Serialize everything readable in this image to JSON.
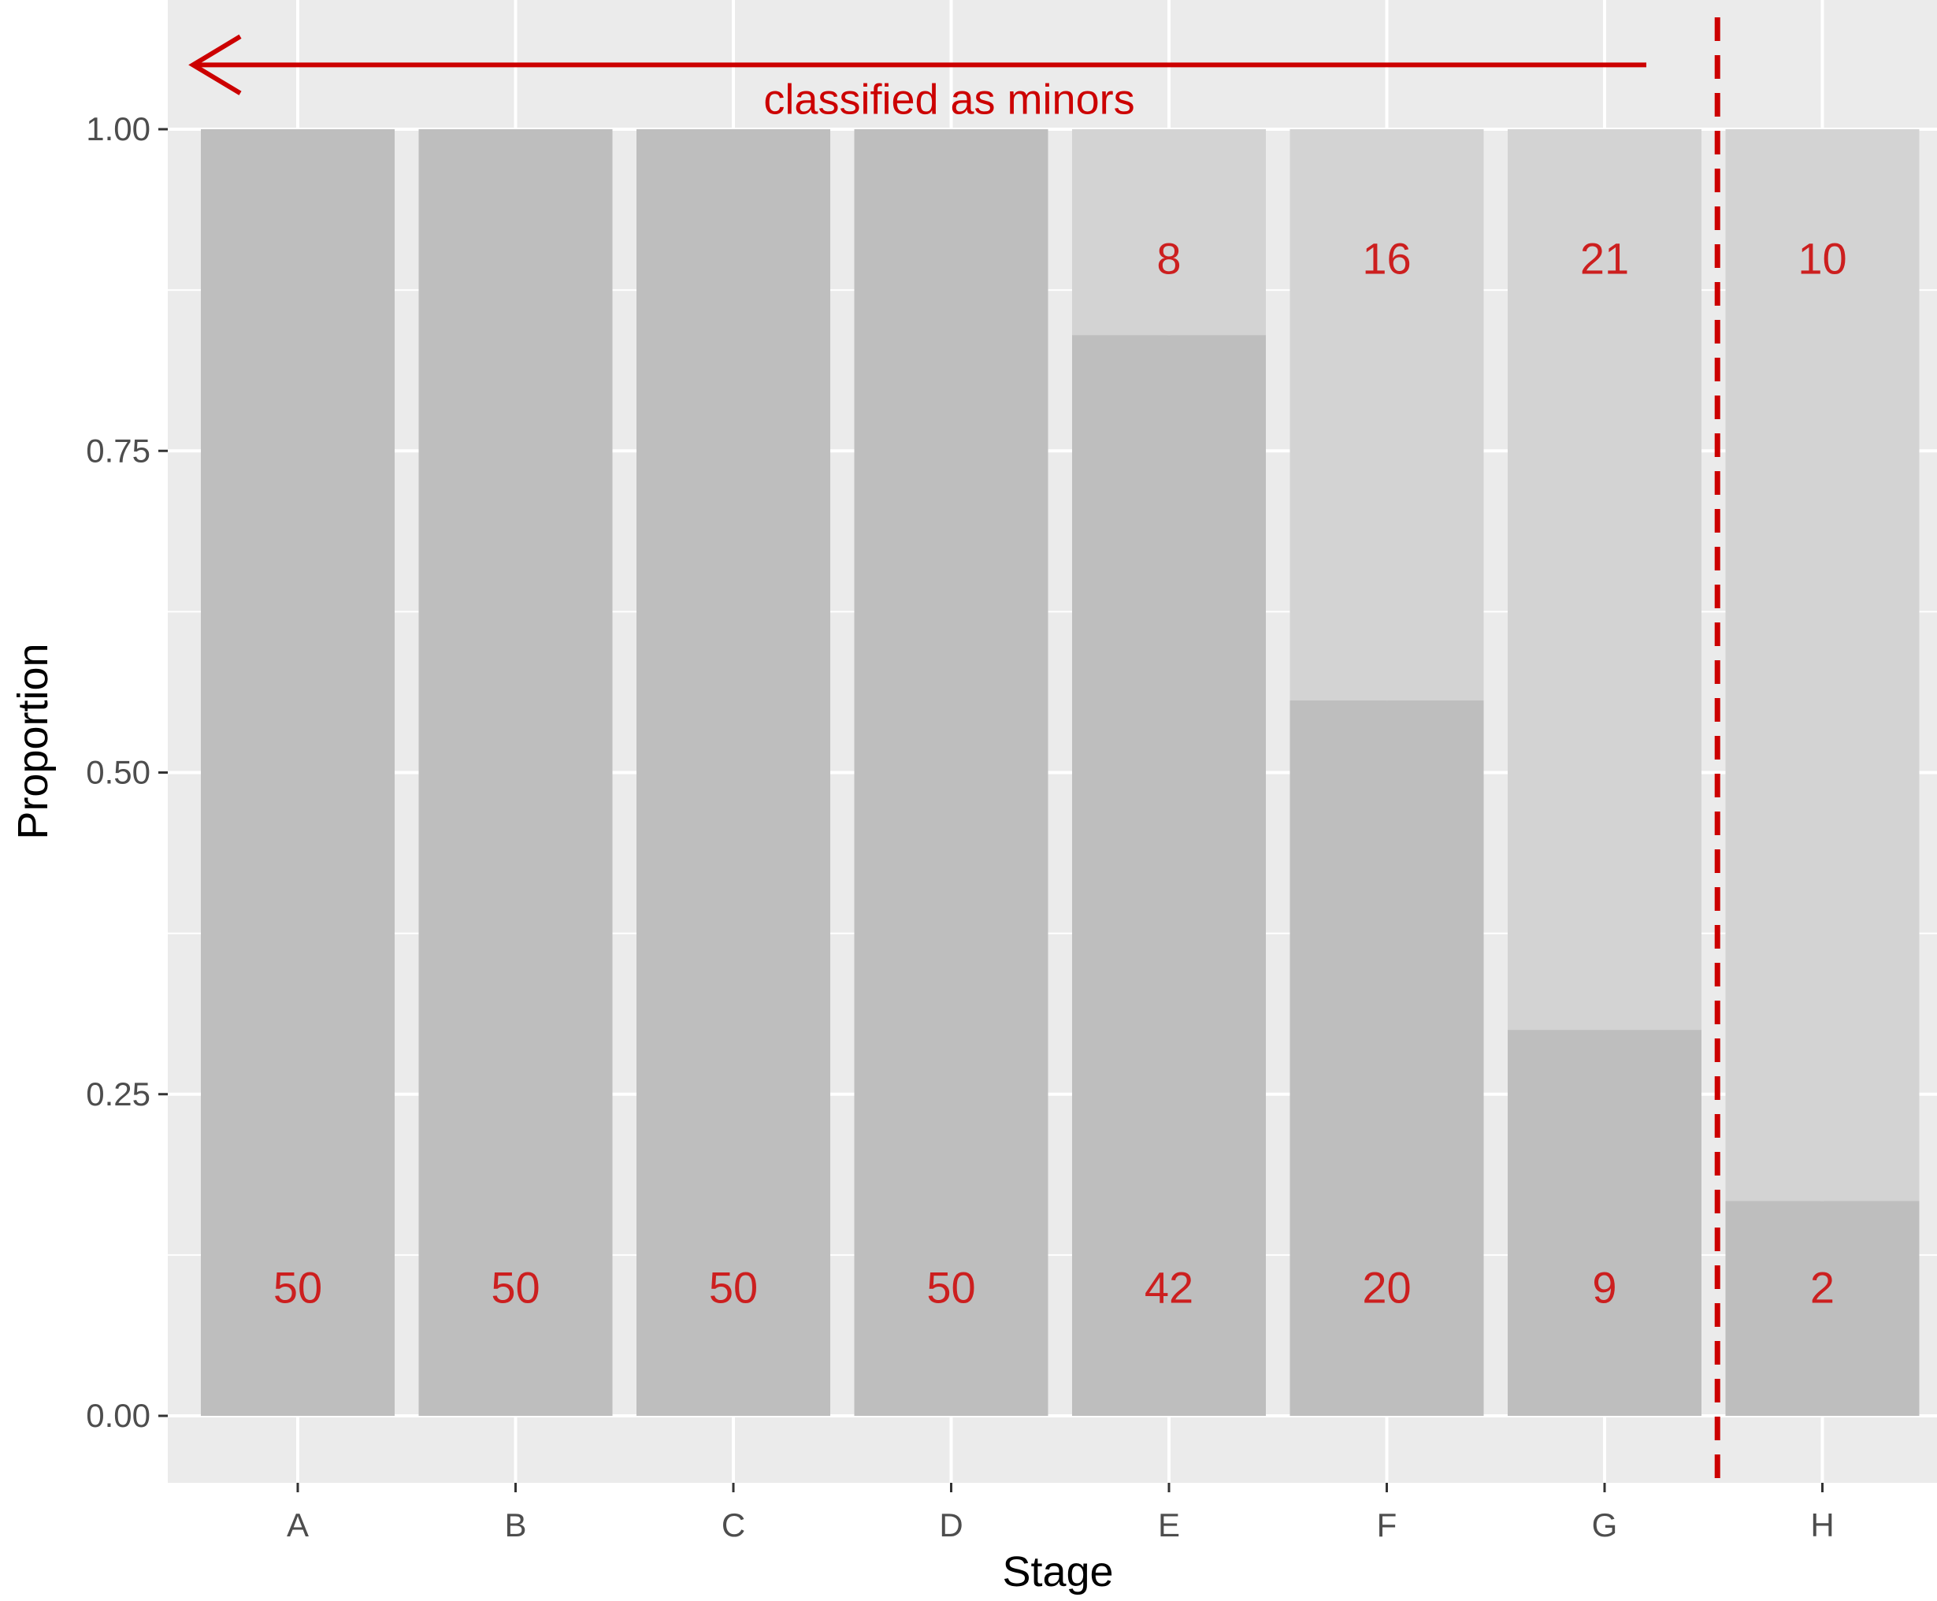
{
  "chart_data": {
    "type": "bar",
    "stacked": true,
    "categories": [
      "A",
      "B",
      "C",
      "D",
      "E",
      "F",
      "G",
      "H"
    ],
    "counts_lower": [
      50,
      50,
      50,
      50,
      42,
      20,
      9,
      2
    ],
    "counts_upper": [
      null,
      null,
      null,
      null,
      8,
      16,
      21,
      10
    ],
    "series": [
      {
        "values": [
          1.0,
          1.0,
          1.0,
          1.0,
          0.84,
          0.556,
          0.3,
          0.167
        ],
        "color": "#bebebe"
      },
      {
        "values": [
          0.0,
          0.0,
          0.0,
          0.0,
          0.16,
          0.444,
          0.7,
          0.833
        ],
        "color": "#d3d3d3"
      }
    ],
    "xlabel": "Stage",
    "ylabel": "Proportion",
    "ylim": [
      -0.05,
      1.05
    ],
    "y_ticks": [
      0.0,
      0.25,
      0.5,
      0.75,
      1.0
    ],
    "y_tick_labels": [
      "0.00",
      "0.25",
      "0.50",
      "0.75",
      "1.00"
    ],
    "annotation": {
      "text": "classified as minors",
      "arrow_direction": "left",
      "cutoff_between": [
        "G",
        "H"
      ],
      "color": "#cc0000"
    },
    "label_color": "#cc1f1f",
    "panel_background": "#ebebeb",
    "grid": true
  }
}
